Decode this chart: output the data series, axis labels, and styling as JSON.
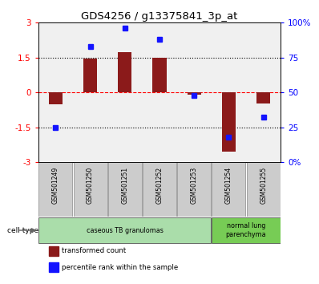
{
  "title": "GDS4256 / g13375841_3p_at",
  "samples": [
    "GSM501249",
    "GSM501250",
    "GSM501251",
    "GSM501252",
    "GSM501253",
    "GSM501254",
    "GSM501255"
  ],
  "transformed_counts": [
    -0.5,
    1.45,
    1.75,
    1.5,
    -0.08,
    -2.55,
    -0.48
  ],
  "percentile_ranks": [
    25,
    83,
    96,
    88,
    48,
    18,
    32
  ],
  "ylim_left": [
    -3,
    3
  ],
  "ylim_right": [
    0,
    100
  ],
  "yticks_left": [
    -3,
    -1.5,
    0,
    1.5,
    3
  ],
  "yticks_right": [
    0,
    25,
    50,
    75,
    100
  ],
  "ytick_labels_right": [
    "0%",
    "25",
    "50",
    "75",
    "100%"
  ],
  "hlines_dotted": [
    -1.5,
    1.5
  ],
  "hline_zero_color": "red",
  "bar_color": "#8B1A1A",
  "dot_color": "#1414FF",
  "cell_groups": [
    {
      "label": "caseous TB granulomas",
      "start": 0,
      "end": 4,
      "color": "#aaddaa"
    },
    {
      "label": "normal lung\nparenchyma",
      "start": 5,
      "end": 6,
      "color": "#77cc55"
    }
  ],
  "legend_items": [
    {
      "label": "transformed count",
      "color": "#8B1A1A"
    },
    {
      "label": "percentile rank within the sample",
      "color": "#1414FF"
    }
  ],
  "cell_type_label": "cell type",
  "background_plot": "#f0f0f0",
  "background_xticklabel": "#cccccc"
}
